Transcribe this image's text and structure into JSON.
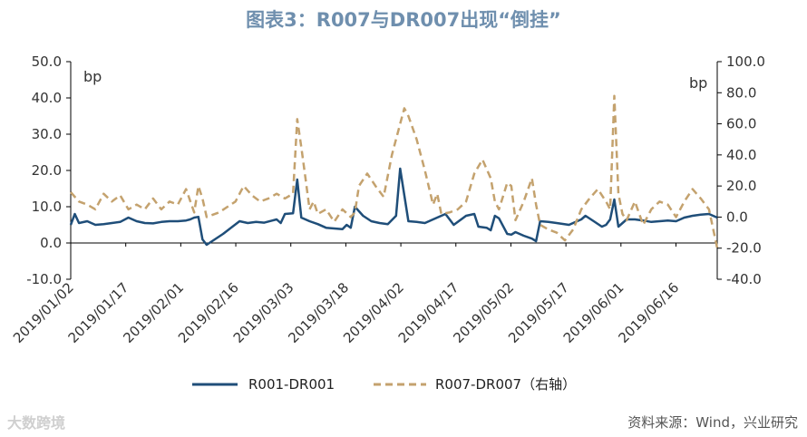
{
  "title": "图表3：R007与DR007出现“倒挂”",
  "source": "资料来源：Wind，兴业研究",
  "watermark": "大数跨境",
  "chart_data": {
    "type": "line",
    "title": "图表3：R007与DR007出现“倒挂”",
    "left_axis": {
      "unit": "bp",
      "range": [
        -10,
        50
      ],
      "ticks": [
        "-10.0",
        "0.0",
        "10.0",
        "20.0",
        "30.0",
        "40.0",
        "50.0"
      ]
    },
    "right_axis": {
      "unit": "bp",
      "range": [
        -40,
        100
      ],
      "ticks": [
        "-40.0",
        "-20.0",
        "0.0",
        "20.0",
        "40.0",
        "60.0",
        "80.0",
        "100.0"
      ]
    },
    "x_ticks": [
      "2019/01/02",
      "2019/01/17",
      "2019/02/01",
      "2019/02/16",
      "2019/03/03",
      "2019/03/18",
      "2019/04/02",
      "2019/04/17",
      "2019/05/02",
      "2019/05/17",
      "2019/06/01",
      "2019/06/16"
    ],
    "grid": false,
    "legend_position": "bottom",
    "series": [
      {
        "name": "R001-DR001",
        "axis": "left",
        "color": "#1f4e79",
        "style": "solid",
        "points": [
          [
            0,
            5
          ],
          [
            1,
            8
          ],
          [
            2,
            5.5
          ],
          [
            4,
            6
          ],
          [
            6,
            5
          ],
          [
            8,
            5.2
          ],
          [
            10,
            5.5
          ],
          [
            12,
            5.8
          ],
          [
            14,
            7
          ],
          [
            16,
            6
          ],
          [
            18,
            5.5
          ],
          [
            20,
            5.4
          ],
          [
            22,
            5.8
          ],
          [
            24,
            6
          ],
          [
            26,
            6
          ],
          [
            28,
            6.2
          ],
          [
            29,
            6.5
          ],
          [
            30,
            7
          ],
          [
            31,
            7.2
          ],
          [
            32,
            1
          ],
          [
            33,
            -0.5
          ],
          [
            37,
            2.5
          ],
          [
            41,
            6
          ],
          [
            43,
            5.5
          ],
          [
            45,
            5.8
          ],
          [
            47,
            5.6
          ],
          [
            49,
            6.2
          ],
          [
            50,
            6.5
          ],
          [
            51,
            5.5
          ],
          [
            52,
            8
          ],
          [
            54,
            8.2
          ],
          [
            55,
            17.5
          ],
          [
            56,
            7
          ],
          [
            58,
            6
          ],
          [
            60,
            5.2
          ],
          [
            62,
            4.2
          ],
          [
            64,
            4
          ],
          [
            66,
            3.8
          ],
          [
            67,
            5
          ],
          [
            68,
            4.2
          ],
          [
            69,
            10
          ],
          [
            71,
            7.5
          ],
          [
            73,
            6
          ],
          [
            75,
            5.5
          ],
          [
            77,
            5.2
          ],
          [
            79,
            7.5
          ],
          [
            80,
            20.5
          ],
          [
            82,
            6
          ],
          [
            84,
            5.8
          ],
          [
            86,
            5.5
          ],
          [
            88,
            6.5
          ],
          [
            90,
            7.5
          ],
          [
            91,
            8
          ],
          [
            93,
            5
          ],
          [
            96,
            7.5
          ],
          [
            98,
            8
          ],
          [
            99,
            4.5
          ],
          [
            101,
            4.2
          ],
          [
            102,
            3.5
          ],
          [
            103,
            7.5
          ],
          [
            104,
            6.8
          ],
          [
            106,
            2.5
          ],
          [
            107,
            2.3
          ],
          [
            108,
            3
          ],
          [
            110,
            2
          ],
          [
            112,
            1.2
          ],
          [
            113,
            0.5
          ],
          [
            114,
            6
          ],
          [
            116,
            5.8
          ],
          [
            118,
            5.5
          ],
          [
            121,
            5
          ],
          [
            124,
            6.5
          ],
          [
            125,
            7.5
          ],
          [
            127,
            6
          ],
          [
            129,
            4.5
          ],
          [
            130,
            5
          ],
          [
            131,
            6.5
          ],
          [
            132,
            12
          ],
          [
            133,
            4.5
          ],
          [
            135,
            6.5
          ],
          [
            137,
            6.5
          ],
          [
            139,
            6.2
          ],
          [
            141,
            5.8
          ],
          [
            143,
            6
          ],
          [
            145,
            6.2
          ],
          [
            147,
            6
          ],
          [
            149,
            7
          ],
          [
            151,
            7.5
          ],
          [
            153,
            7.8
          ],
          [
            155,
            8
          ],
          [
            157,
            7
          ]
        ]
      },
      {
        "name": "R007-DR007（右轴）",
        "axis": "right",
        "color": "#c4a26e",
        "style": "dashed",
        "points": [
          [
            0,
            16
          ],
          [
            2,
            10
          ],
          [
            4,
            8
          ],
          [
            6,
            5
          ],
          [
            8,
            15
          ],
          [
            10,
            10
          ],
          [
            12,
            14
          ],
          [
            14,
            5
          ],
          [
            16,
            8
          ],
          [
            18,
            5
          ],
          [
            20,
            12
          ],
          [
            22,
            5
          ],
          [
            24,
            10
          ],
          [
            26,
            8
          ],
          [
            28,
            18
          ],
          [
            30,
            3
          ],
          [
            31,
            20
          ],
          [
            32,
            12
          ],
          [
            33,
            0
          ],
          [
            36,
            3
          ],
          [
            40,
            10
          ],
          [
            42,
            20
          ],
          [
            44,
            14
          ],
          [
            46,
            10
          ],
          [
            48,
            12
          ],
          [
            50,
            15
          ],
          [
            52,
            12
          ],
          [
            54,
            15
          ],
          [
            55,
            63
          ],
          [
            56,
            45
          ],
          [
            57,
            25
          ],
          [
            58,
            5
          ],
          [
            59,
            10
          ],
          [
            60,
            2
          ],
          [
            62,
            5
          ],
          [
            64,
            -3
          ],
          [
            66,
            5
          ],
          [
            68,
            0
          ],
          [
            69,
            3
          ],
          [
            70,
            20
          ],
          [
            72,
            28
          ],
          [
            74,
            20
          ],
          [
            76,
            13
          ],
          [
            78,
            40
          ],
          [
            80,
            60
          ],
          [
            81,
            70
          ],
          [
            82,
            65
          ],
          [
            84,
            50
          ],
          [
            86,
            30
          ],
          [
            88,
            8
          ],
          [
            89,
            15
          ],
          [
            90,
            2
          ],
          [
            92,
            3
          ],
          [
            94,
            5
          ],
          [
            96,
            10
          ],
          [
            98,
            28
          ],
          [
            100,
            37
          ],
          [
            102,
            25
          ],
          [
            103,
            10
          ],
          [
            104,
            5
          ],
          [
            106,
            22
          ],
          [
            107,
            20
          ],
          [
            108,
            -2
          ],
          [
            110,
            10
          ],
          [
            112,
            25
          ],
          [
            113,
            8
          ],
          [
            114,
            -5
          ],
          [
            116,
            -8
          ],
          [
            118,
            -10
          ],
          [
            120,
            -15
          ],
          [
            122,
            -8
          ],
          [
            124,
            5
          ],
          [
            126,
            12
          ],
          [
            128,
            18
          ],
          [
            130,
            10
          ],
          [
            131,
            5
          ],
          [
            132,
            78
          ],
          [
            133,
            15
          ],
          [
            134,
            2
          ],
          [
            135,
            -2
          ],
          [
            137,
            10
          ],
          [
            139,
            -5
          ],
          [
            141,
            5
          ],
          [
            143,
            10
          ],
          [
            145,
            8
          ],
          [
            147,
            0
          ],
          [
            149,
            10
          ],
          [
            151,
            18
          ],
          [
            153,
            12
          ],
          [
            155,
            5
          ],
          [
            157,
            -20
          ]
        ]
      }
    ]
  }
}
